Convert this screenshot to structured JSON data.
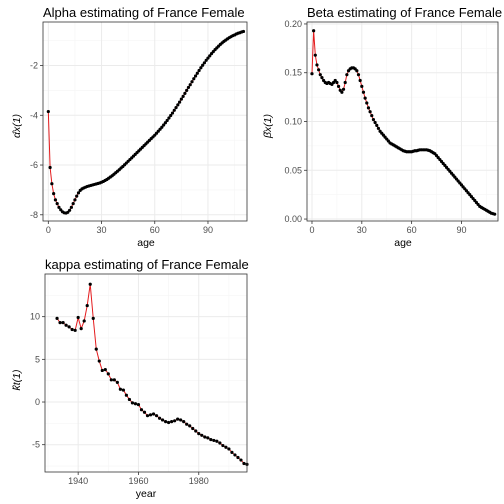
{
  "colors": {
    "line": "#e41a1c",
    "point": "#000000",
    "grid_major": "#ebebeb",
    "grid_minor": "#f5f5f5",
    "panel_border": "#333333",
    "tick_text": "#4d4d4d"
  },
  "chart_data": [
    {
      "type": "line",
      "title": "Alpha estimating of France Female",
      "xlabel": "age",
      "ylabel": "α̂x(1)",
      "xlim": [
        -3,
        112
      ],
      "ylim": [
        -8.25,
        -0.25
      ],
      "xticks": [
        0,
        30,
        60,
        90
      ],
      "yticks": [
        -8,
        -6,
        -4,
        -2
      ],
      "grid": true,
      "series": [
        {
          "x_start": 0,
          "x_step": 1,
          "values": [
            -3.85,
            -6.1,
            -6.75,
            -7.15,
            -7.4,
            -7.55,
            -7.7,
            -7.8,
            -7.88,
            -7.92,
            -7.93,
            -7.9,
            -7.82,
            -7.7,
            -7.55,
            -7.4,
            -7.25,
            -7.12,
            -7.02,
            -6.96,
            -6.92,
            -6.89,
            -6.86,
            -6.84,
            -6.82,
            -6.8,
            -6.78,
            -6.76,
            -6.74,
            -6.72,
            -6.69,
            -6.66,
            -6.62,
            -6.58,
            -6.53,
            -6.48,
            -6.43,
            -6.37,
            -6.31,
            -6.25,
            -6.19,
            -6.12,
            -6.06,
            -5.99,
            -5.92,
            -5.85,
            -5.78,
            -5.71,
            -5.64,
            -5.57,
            -5.5,
            -5.43,
            -5.36,
            -5.29,
            -5.22,
            -5.15,
            -5.08,
            -5.01,
            -4.94,
            -4.87,
            -4.8,
            -4.72,
            -4.64,
            -4.56,
            -4.48,
            -4.39,
            -4.3,
            -4.21,
            -4.11,
            -4.01,
            -3.91,
            -3.8,
            -3.69,
            -3.58,
            -3.47,
            -3.35,
            -3.24,
            -3.12,
            -3.0,
            -2.88,
            -2.77,
            -2.65,
            -2.53,
            -2.42,
            -2.31,
            -2.2,
            -2.09,
            -1.99,
            -1.89,
            -1.79,
            -1.7,
            -1.61,
            -1.52,
            -1.44,
            -1.36,
            -1.29,
            -1.22,
            -1.15,
            -1.09,
            -1.03,
            -0.98,
            -0.93,
            -0.88,
            -0.84,
            -0.8,
            -0.77,
            -0.73,
            -0.7,
            -0.68,
            -0.65,
            -0.63
          ]
        }
      ]
    },
    {
      "type": "line",
      "title": "Beta estimating of France Female",
      "xlabel": "age",
      "ylabel": "β̂x(1)",
      "xlim": [
        -3,
        112
      ],
      "ylim": [
        -0.002,
        0.202
      ],
      "xticks": [
        0,
        30,
        60,
        90
      ],
      "yticks": [
        0.0,
        0.05,
        0.1,
        0.15,
        0.2
      ],
      "ytick_labels": [
        "0.00",
        "0.05",
        "0.10",
        "0.15",
        "0.20"
      ],
      "grid": true,
      "series": [
        {
          "x_start": 0,
          "x_step": 1,
          "values": [
            0.149,
            0.193,
            0.168,
            0.158,
            0.153,
            0.148,
            0.145,
            0.142,
            0.14,
            0.139,
            0.14,
            0.139,
            0.138,
            0.14,
            0.142,
            0.14,
            0.136,
            0.132,
            0.13,
            0.133,
            0.14,
            0.148,
            0.152,
            0.154,
            0.155,
            0.155,
            0.154,
            0.152,
            0.148,
            0.142,
            0.136,
            0.13,
            0.124,
            0.119,
            0.114,
            0.11,
            0.106,
            0.102,
            0.099,
            0.096,
            0.093,
            0.09,
            0.088,
            0.086,
            0.084,
            0.082,
            0.08,
            0.078,
            0.077,
            0.076,
            0.075,
            0.074,
            0.073,
            0.072,
            0.071,
            0.07,
            0.0695,
            0.069,
            0.069,
            0.069,
            0.069,
            0.0695,
            0.07,
            0.07,
            0.0705,
            0.071,
            0.071,
            0.071,
            0.071,
            0.071,
            0.0705,
            0.07,
            0.069,
            0.068,
            0.067,
            0.065,
            0.063,
            0.061,
            0.059,
            0.057,
            0.055,
            0.053,
            0.051,
            0.049,
            0.047,
            0.045,
            0.043,
            0.041,
            0.039,
            0.037,
            0.035,
            0.033,
            0.031,
            0.029,
            0.027,
            0.025,
            0.023,
            0.021,
            0.019,
            0.017,
            0.015,
            0.013,
            0.012,
            0.011,
            0.01,
            0.009,
            0.008,
            0.007,
            0.006,
            0.0055,
            0.005
          ]
        }
      ]
    },
    {
      "type": "line",
      "title": "kappa estimating of France Female",
      "xlabel": "year",
      "ylabel": "k̂t(1)",
      "xlim": [
        1929,
        1996
      ],
      "ylim": [
        -8.2,
        15
      ],
      "xticks": [
        1940,
        1960,
        1980
      ],
      "yticks": [
        -5,
        0,
        5,
        10
      ],
      "grid": true,
      "series": [
        {
          "x_start": 1933,
          "x_step": 1,
          "values": [
            9.8,
            9.3,
            9.3,
            9.0,
            8.8,
            8.5,
            8.4,
            9.9,
            8.6,
            9.5,
            11.3,
            13.8,
            9.8,
            6.2,
            4.8,
            3.7,
            3.8,
            3.3,
            2.6,
            2.6,
            2.3,
            1.5,
            1.4,
            0.8,
            0.3,
            -0.1,
            -0.2,
            -0.3,
            -0.9,
            -1.2,
            -1.6,
            -1.5,
            -1.4,
            -1.6,
            -1.9,
            -2.1,
            -2.3,
            -2.4,
            -2.3,
            -2.2,
            -2.0,
            -2.1,
            -2.3,
            -2.6,
            -2.8,
            -3.1,
            -3.4,
            -3.7,
            -3.9,
            -4.1,
            -4.2,
            -4.4,
            -4.5,
            -4.6,
            -4.8,
            -5.1,
            -5.3,
            -5.5,
            -5.9,
            -6.2,
            -6.5,
            -6.8,
            -7.2,
            -7.3
          ]
        }
      ]
    }
  ]
}
